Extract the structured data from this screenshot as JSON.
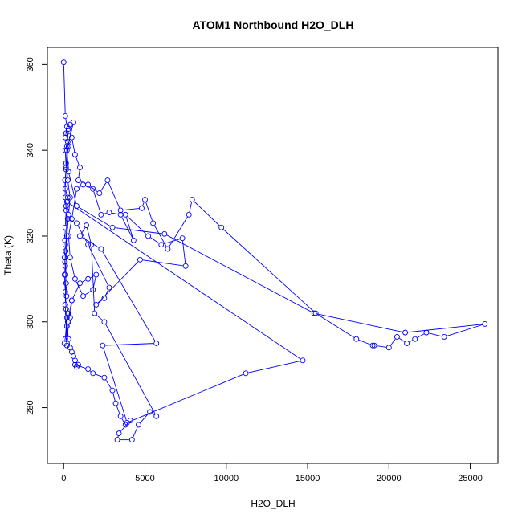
{
  "chart_data": {
    "type": "line",
    "title": "ATOM1 Northbound H2O_DLH",
    "xlabel": "H2O_DLH",
    "ylabel": "Theta (K)",
    "xlim": [
      -1000,
      26700
    ],
    "ylim": [
      267.0,
      364.0
    ],
    "xticks": [
      0,
      5000,
      10000,
      15000,
      20000,
      25000
    ],
    "yticks": [
      280,
      300,
      320,
      340,
      360
    ],
    "grid": false,
    "legend": "none",
    "marker": "open-circle",
    "line_color": "#0000ff",
    "series": [
      {
        "points": [
          [
            0,
            360.5
          ],
          [
            100,
            348
          ],
          [
            200,
            345.5
          ],
          [
            100,
            343
          ],
          [
            300,
            341
          ],
          [
            150,
            337
          ],
          [
            250,
            333
          ],
          [
            400,
            329
          ],
          [
            300,
            325
          ],
          [
            200,
            320
          ],
          [
            100,
            318
          ],
          [
            50,
            315
          ],
          [
            100,
            313
          ],
          [
            50,
            311
          ],
          [
            100,
            307
          ],
          [
            150,
            303
          ],
          [
            200,
            301
          ],
          [
            100,
            296
          ],
          [
            50,
            295
          ],
          [
            250,
            300
          ],
          [
            500,
            305
          ],
          [
            1000,
            309
          ],
          [
            1500,
            310
          ],
          [
            2000,
            311
          ],
          [
            1800,
            307.5
          ],
          [
            1200,
            306
          ],
          [
            700,
            310
          ],
          [
            400,
            315
          ],
          [
            300,
            320
          ],
          [
            500,
            324
          ],
          [
            800,
            331
          ],
          [
            1200,
            332
          ],
          [
            1800,
            331
          ],
          [
            2300,
            325
          ],
          [
            2800,
            325.5
          ],
          [
            3500,
            325
          ],
          [
            4300,
            319
          ],
          [
            3800,
            325
          ],
          [
            5200,
            320
          ],
          [
            6000,
            318
          ],
          [
            7300,
            319.5
          ],
          [
            7500,
            313
          ],
          [
            4700,
            314.5
          ],
          [
            2000,
            304
          ],
          [
            2500,
            305.5
          ],
          [
            2800,
            308
          ],
          [
            1500,
            318
          ],
          [
            800,
            323
          ],
          [
            250,
            324
          ],
          [
            150,
            327
          ],
          [
            250,
            329
          ],
          [
            100,
            331
          ],
          [
            150,
            336
          ],
          [
            100,
            340
          ],
          [
            250,
            342
          ],
          [
            150,
            344
          ],
          [
            300,
            344.5
          ],
          [
            500,
            343
          ],
          [
            700,
            339
          ],
          [
            1000,
            336
          ],
          [
            900,
            333
          ],
          [
            1500,
            332
          ],
          [
            2200,
            330
          ],
          [
            2700,
            333
          ],
          [
            3500,
            326
          ],
          [
            4800,
            326.5
          ],
          [
            5000,
            328.5
          ],
          [
            5500,
            323
          ],
          [
            6400,
            317
          ],
          [
            7700,
            325
          ],
          [
            7900,
            328.5
          ],
          [
            9700,
            322
          ],
          [
            15500,
            302
          ],
          [
            18000,
            296
          ],
          [
            19000,
            294.5
          ],
          [
            19100,
            294.5
          ],
          [
            20000,
            294
          ],
          [
            20500,
            296.5
          ],
          [
            21100,
            295
          ],
          [
            21600,
            296
          ],
          [
            22300,
            297.5
          ],
          [
            23400,
            296.5
          ],
          [
            25900,
            299.5
          ],
          [
            21000,
            297.5
          ],
          [
            15400,
            302
          ],
          [
            6200,
            320.5
          ],
          [
            3000,
            322
          ],
          [
            800,
            327
          ],
          [
            300,
            335
          ],
          [
            200,
            340
          ],
          [
            600,
            346.5
          ],
          [
            400,
            346
          ],
          [
            300,
            345
          ],
          [
            200,
            341
          ],
          [
            150,
            335.5
          ],
          [
            80,
            333
          ],
          [
            100,
            329
          ],
          [
            150,
            326
          ],
          [
            100,
            322
          ],
          [
            80,
            319
          ],
          [
            120,
            316.5
          ],
          [
            80,
            314
          ],
          [
            120,
            311
          ],
          [
            150,
            309
          ],
          [
            180,
            306
          ],
          [
            250,
            302
          ],
          [
            200,
            299
          ],
          [
            300,
            296
          ],
          [
            400,
            294
          ],
          [
            500,
            293
          ],
          [
            600,
            292
          ],
          [
            700,
            291
          ],
          [
            900,
            290
          ],
          [
            800,
            289.5
          ],
          [
            700,
            290
          ],
          [
            1500,
            289
          ],
          [
            1800,
            288
          ],
          [
            2500,
            287
          ],
          [
            3000,
            284
          ],
          [
            3200,
            281
          ],
          [
            3500,
            278
          ],
          [
            3800,
            276
          ],
          [
            4100,
            277
          ],
          [
            3400,
            274
          ],
          [
            3300,
            272.5
          ],
          [
            4200,
            272.5
          ],
          [
            4600,
            276
          ],
          [
            5300,
            279
          ],
          [
            5700,
            278
          ],
          [
            2500,
            300
          ],
          [
            1900,
            302
          ],
          [
            1700,
            318
          ],
          [
            1400,
            322.5
          ],
          [
            1000,
            320
          ],
          [
            2300,
            317
          ],
          [
            5700,
            295
          ],
          [
            2400,
            294.5
          ],
          [
            3900,
            276.5
          ],
          [
            11200,
            288
          ],
          [
            14700,
            291
          ],
          [
            200,
            328
          ],
          [
            100,
            304
          ],
          [
            200,
            294.5
          ],
          [
            300,
            300
          ],
          [
            400,
            301
          ],
          [
            500,
            305
          ]
        ]
      }
    ]
  }
}
